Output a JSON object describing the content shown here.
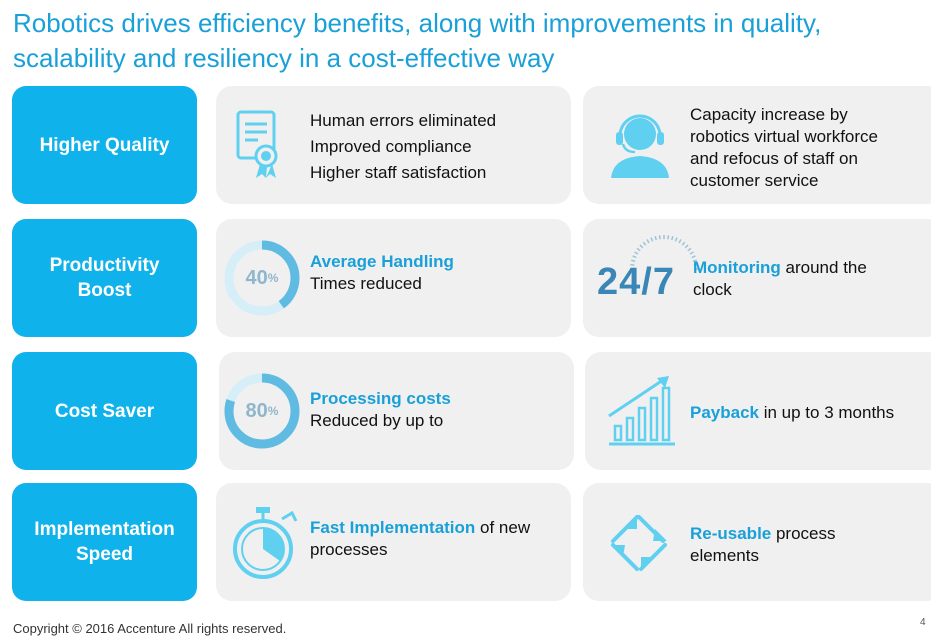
{
  "title": "Robotics drives efficiency benefits, along with improvements in quality, scalability and resiliency in a cost-effective way",
  "rows": [
    {
      "label": "Higher Quality",
      "left": {
        "icon": "certificate-icon",
        "lines": [
          "Human errors eliminated",
          "Improved compliance",
          "Higher staff satisfaction"
        ]
      },
      "right": {
        "icon": "headset-agent-icon",
        "text": "Capacity increase by robotics virtual workforce and refocus of staff on customer service"
      }
    },
    {
      "label": "Productivity Boost",
      "left": {
        "icon": "progress-ring-icon",
        "ring_value": "40",
        "ring_unit": "%",
        "ring_fraction": 0.4,
        "highlight": "Average Handling",
        "text": "Times reduced"
      },
      "right": {
        "icon": "clock-247-icon",
        "big_text": "24/7",
        "highlight": "Monitoring",
        "text_after": " around the clock"
      }
    },
    {
      "label": "Cost Saver",
      "left": {
        "icon": "progress-ring-icon",
        "ring_value": "80",
        "ring_unit": "%",
        "ring_fraction": 0.8,
        "highlight": "Processing costs",
        "text": "Reduced by up to"
      },
      "right": {
        "icon": "growth-chart-icon",
        "highlight": "Payback",
        "text_after": " in up to 3 months"
      }
    },
    {
      "label": "Implementation Speed",
      "left": {
        "icon": "stopwatch-icon",
        "highlight": "Fast Implementation",
        "text_after": " of new processes"
      },
      "right": {
        "icon": "recycle-arrows-icon",
        "highlight": "Re-usable",
        "text_after": " process elements"
      }
    }
  ],
  "footer": "Copyright © 2016 Accenture  All rights reserved.",
  "page_number": "4",
  "colors": {
    "accent": "#0fb2ea",
    "title": "#1aa0d8",
    "card": "#f0f0f0",
    "icon": "#5fd0f0"
  }
}
